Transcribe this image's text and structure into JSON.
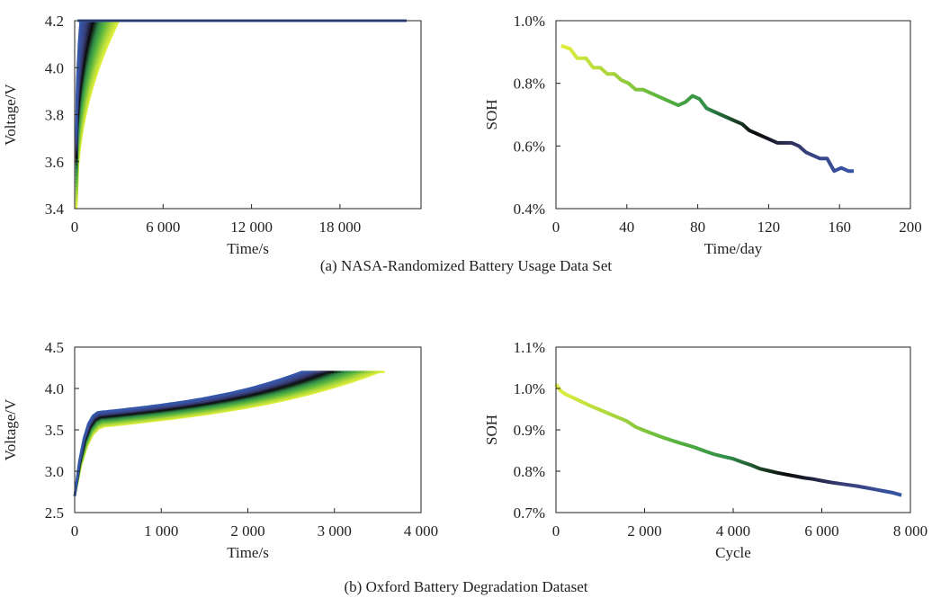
{
  "captions": {
    "a": "(a) NASA-Randomized Battery Usage Data Set",
    "b": "(b) Oxford Battery Degradation Dataset"
  },
  "colors": {
    "gradient": [
      "#e0ef3c",
      "#a9d63b",
      "#5cb63e",
      "#2f8b49",
      "#0b0b0b",
      "#3a3f7a",
      "#3556a8"
    ]
  },
  "chart_data": [
    {
      "id": "a-left",
      "type": "line",
      "xlabel": "Time/s",
      "ylabel": "Voltage/V",
      "xlim": [
        0,
        23500
      ],
      "ylim": [
        3.4,
        4.2
      ],
      "xticks": [
        0,
        6000,
        12000,
        18000
      ],
      "xtick_labels": [
        "0",
        "6 000",
        "12 000",
        "18 000"
      ],
      "yticks": [
        3.4,
        3.6,
        3.8,
        4.0,
        4.2
      ],
      "ytick_labels": [
        "3.4",
        "3.6",
        "3.8",
        "4.0",
        "4.2"
      ],
      "curve_count": 22,
      "series_summary": {
        "start_voltage": [
          3.4,
          3.72
        ],
        "reach_4_2_time": [
          3000,
          400
        ],
        "plateau_end_time": 22500,
        "plateau_voltage": 4.2
      }
    },
    {
      "id": "a-right",
      "type": "line",
      "xlabel": "Time/day",
      "ylabel": "SOH",
      "xlim": [
        0,
        200
      ],
      "ylim": [
        0.4,
        1.0
      ],
      "xticks": [
        0,
        40,
        80,
        120,
        160,
        200
      ],
      "xtick_labels": [
        "0",
        "40",
        "80",
        "120",
        "160",
        "200"
      ],
      "yticks": [
        0.4,
        0.6,
        0.8,
        1.0
      ],
      "ytick_labels": [
        "0.4%",
        "0.6%",
        "0.8%",
        "1.0%"
      ],
      "x": [
        3,
        8,
        12,
        17,
        21,
        25,
        29,
        33,
        37,
        41,
        45,
        49,
        53,
        57,
        61,
        65,
        69,
        73,
        77,
        81,
        85,
        89,
        93,
        97,
        101,
        105,
        109,
        113,
        117,
        121,
        125,
        129,
        133,
        137,
        141,
        145,
        149,
        153,
        157,
        161,
        165,
        168
      ],
      "y": [
        0.92,
        0.91,
        0.88,
        0.88,
        0.85,
        0.85,
        0.83,
        0.83,
        0.81,
        0.8,
        0.78,
        0.78,
        0.77,
        0.76,
        0.75,
        0.74,
        0.73,
        0.74,
        0.76,
        0.75,
        0.72,
        0.71,
        0.7,
        0.69,
        0.68,
        0.67,
        0.65,
        0.64,
        0.63,
        0.62,
        0.61,
        0.61,
        0.61,
        0.6,
        0.58,
        0.57,
        0.56,
        0.56,
        0.52,
        0.53,
        0.52,
        0.52
      ]
    },
    {
      "id": "b-left",
      "type": "line",
      "xlabel": "Time/s",
      "ylabel": "Voltage/V",
      "xlim": [
        0,
        4000
      ],
      "ylim": [
        2.5,
        4.5
      ],
      "xticks": [
        0,
        1000,
        2000,
        3000,
        4000
      ],
      "xtick_labels": [
        "0",
        "1 000",
        "2 000",
        "3 000",
        "4 000"
      ],
      "yticks": [
        2.5,
        3.0,
        3.5,
        4.0,
        4.5
      ],
      "ytick_labels": [
        "2.5",
        "3.0",
        "3.5",
        "4.0",
        "4.5"
      ],
      "curve_count": 24,
      "series_summary": {
        "start_voltage": 2.7,
        "reach_4_2_time": [
          3520,
          2620
        ],
        "plateau_voltage": 4.2
      }
    },
    {
      "id": "b-right",
      "type": "line",
      "xlabel": "Cycle",
      "ylabel": "SOH",
      "xlim": [
        0,
        8000
      ],
      "ylim": [
        0.7,
        1.1
      ],
      "xticks": [
        0,
        2000,
        4000,
        6000,
        8000
      ],
      "xtick_labels": [
        "0",
        "2 000",
        "4 000",
        "6 000",
        "8 000"
      ],
      "yticks": [
        0.7,
        0.8,
        0.9,
        1.0,
        1.1
      ],
      "ytick_labels": [
        "0.7%",
        "0.8%",
        "0.9%",
        "1.0%",
        "1.1%"
      ],
      "x": [
        0,
        100,
        200,
        400,
        600,
        800,
        1000,
        1200,
        1400,
        1600,
        1800,
        2000,
        2200,
        2400,
        2600,
        2800,
        3000,
        3200,
        3400,
        3600,
        3800,
        4000,
        4200,
        4400,
        4600,
        4800,
        5000,
        5200,
        5400,
        5600,
        5800,
        6000,
        6200,
        6400,
        6600,
        6800,
        7000,
        7200,
        7400,
        7600,
        7800
      ],
      "y": [
        1.01,
        0.995,
        0.987,
        0.977,
        0.967,
        0.957,
        0.948,
        0.939,
        0.93,
        0.921,
        0.907,
        0.898,
        0.89,
        0.882,
        0.875,
        0.868,
        0.862,
        0.855,
        0.847,
        0.84,
        0.835,
        0.83,
        0.822,
        0.815,
        0.806,
        0.801,
        0.796,
        0.792,
        0.788,
        0.784,
        0.781,
        0.777,
        0.773,
        0.77,
        0.767,
        0.764,
        0.76,
        0.756,
        0.752,
        0.748,
        0.742
      ]
    }
  ]
}
